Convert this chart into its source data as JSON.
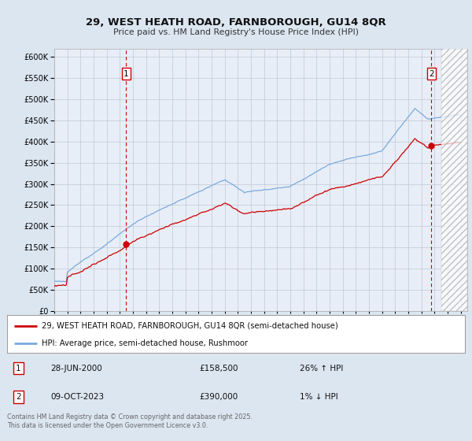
{
  "title": "29, WEST HEATH ROAD, FARNBOROUGH, GU14 8QR",
  "subtitle": "Price paid vs. HM Land Registry's House Price Index (HPI)",
  "ylim": [
    0,
    620000
  ],
  "xlim_start": 1995.0,
  "xlim_end": 2026.5,
  "legend_line1": "29, WEST HEATH ROAD, FARNBOROUGH, GU14 8QR (semi-detached house)",
  "legend_line2": "HPI: Average price, semi-detached house, Rushmoor",
  "annotation1_date": "28-JUN-2000",
  "annotation1_price": "£158,500",
  "annotation1_hpi": "26% ↑ HPI",
  "annotation2_date": "09-OCT-2023",
  "annotation2_price": "£390,000",
  "annotation2_hpi": "1% ↓ HPI",
  "footer": "Contains HM Land Registry data © Crown copyright and database right 2025.\nThis data is licensed under the Open Government Licence v3.0.",
  "sale1_x": 2000.49,
  "sale1_y": 158500,
  "sale2_x": 2023.77,
  "sale2_y": 390000,
  "line_color_price": "#cc0000",
  "line_color_hpi": "#7aaadd",
  "bg_color": "#dce6f1",
  "plot_bg": "#e8eef7",
  "hatch_start": 2024.5
}
